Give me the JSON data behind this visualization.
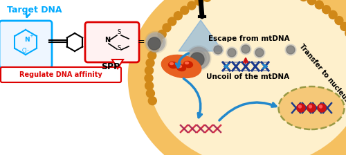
{
  "bg_color": "#ffffff",
  "cell_interior_color": "#FEF0CC",
  "membrane_outer_color": "#F5C060",
  "membrane_inner_color": "#E8A020",
  "laser_color": "#5599DD",
  "arrow_color": "#2288CC",
  "np_outer": "#C0C0C0",
  "np_inner": "#707070",
  "mito_color": "#E86020",
  "mito_inner": "#CC2000",
  "dna_blue": "#1A3A8C",
  "dna_red": "#CC1111",
  "nucleus_fill": "#F5C878",
  "nucleus_edge": "#999944",
  "text_target_dna": "Target DNA",
  "text_target_dna_color": "#00AAFF",
  "text_spp": "SPP",
  "text_regulate": "Regulate DNA affinity",
  "text_regulate_color": "#DD0000",
  "text_escape": "Escape from mtDNA",
  "text_transfer": "Transfer to nucleus",
  "text_uncoil": "Uncoil of the mtDNA",
  "mol_blue": "#00AAFF",
  "mol_red": "#DD0000"
}
